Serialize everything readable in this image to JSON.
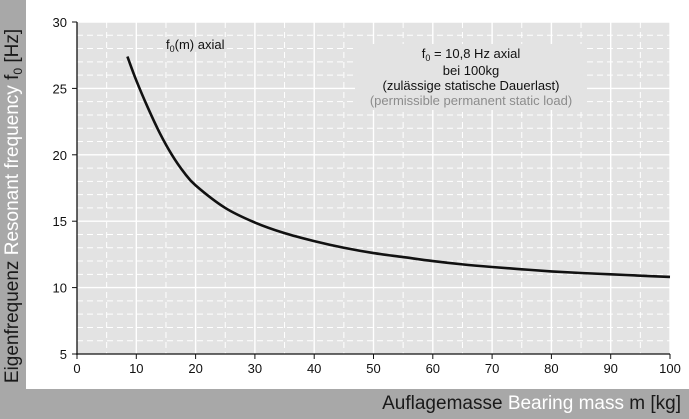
{
  "chart_data": {
    "type": "line",
    "x_label_de": "Auflagemasse",
    "x_label_en": "Bearing mass",
    "x_label_var": "m [kg]",
    "y_label_de": "Eigenfrequenz",
    "y_label_en": "Resonant frequency",
    "y_label_var_pre": "f",
    "y_label_var_sub": "0",
    "y_label_var_post": "[Hz]",
    "xlim": [
      0,
      100
    ],
    "ylim": [
      5,
      30
    ],
    "x_ticks": [
      0,
      10,
      20,
      30,
      40,
      50,
      60,
      70,
      80,
      90,
      100
    ],
    "y_ticks": [
      5,
      10,
      15,
      20,
      25,
      30
    ],
    "grid": true,
    "series": [
      {
        "x": [
          8.5,
          10,
          12,
          14,
          16,
          18,
          20,
          25,
          30,
          35,
          40,
          45,
          50,
          55,
          60,
          65,
          70,
          75,
          80,
          85,
          90,
          95,
          100
        ],
        "y": [
          27.4,
          25.6,
          23.5,
          21.6,
          20.0,
          18.7,
          17.7,
          16.0,
          14.9,
          14.1,
          13.5,
          13.0,
          12.6,
          12.3,
          12.0,
          11.75,
          11.55,
          11.38,
          11.22,
          11.1,
          11.0,
          10.9,
          10.8
        ]
      }
    ],
    "annotations": {
      "curve_label_pre": "f",
      "curve_label_sub": "0",
      "curve_label_post": "(m) axial",
      "box_line1_pre": "f",
      "box_line1_sub": "0",
      "box_line1_post": " = 10,8 Hz axial",
      "box_line2": "bei 100kg",
      "box_line3": "(zulässige statische Dauerlast)",
      "box_line4": "(permissible permanent static load)"
    }
  }
}
